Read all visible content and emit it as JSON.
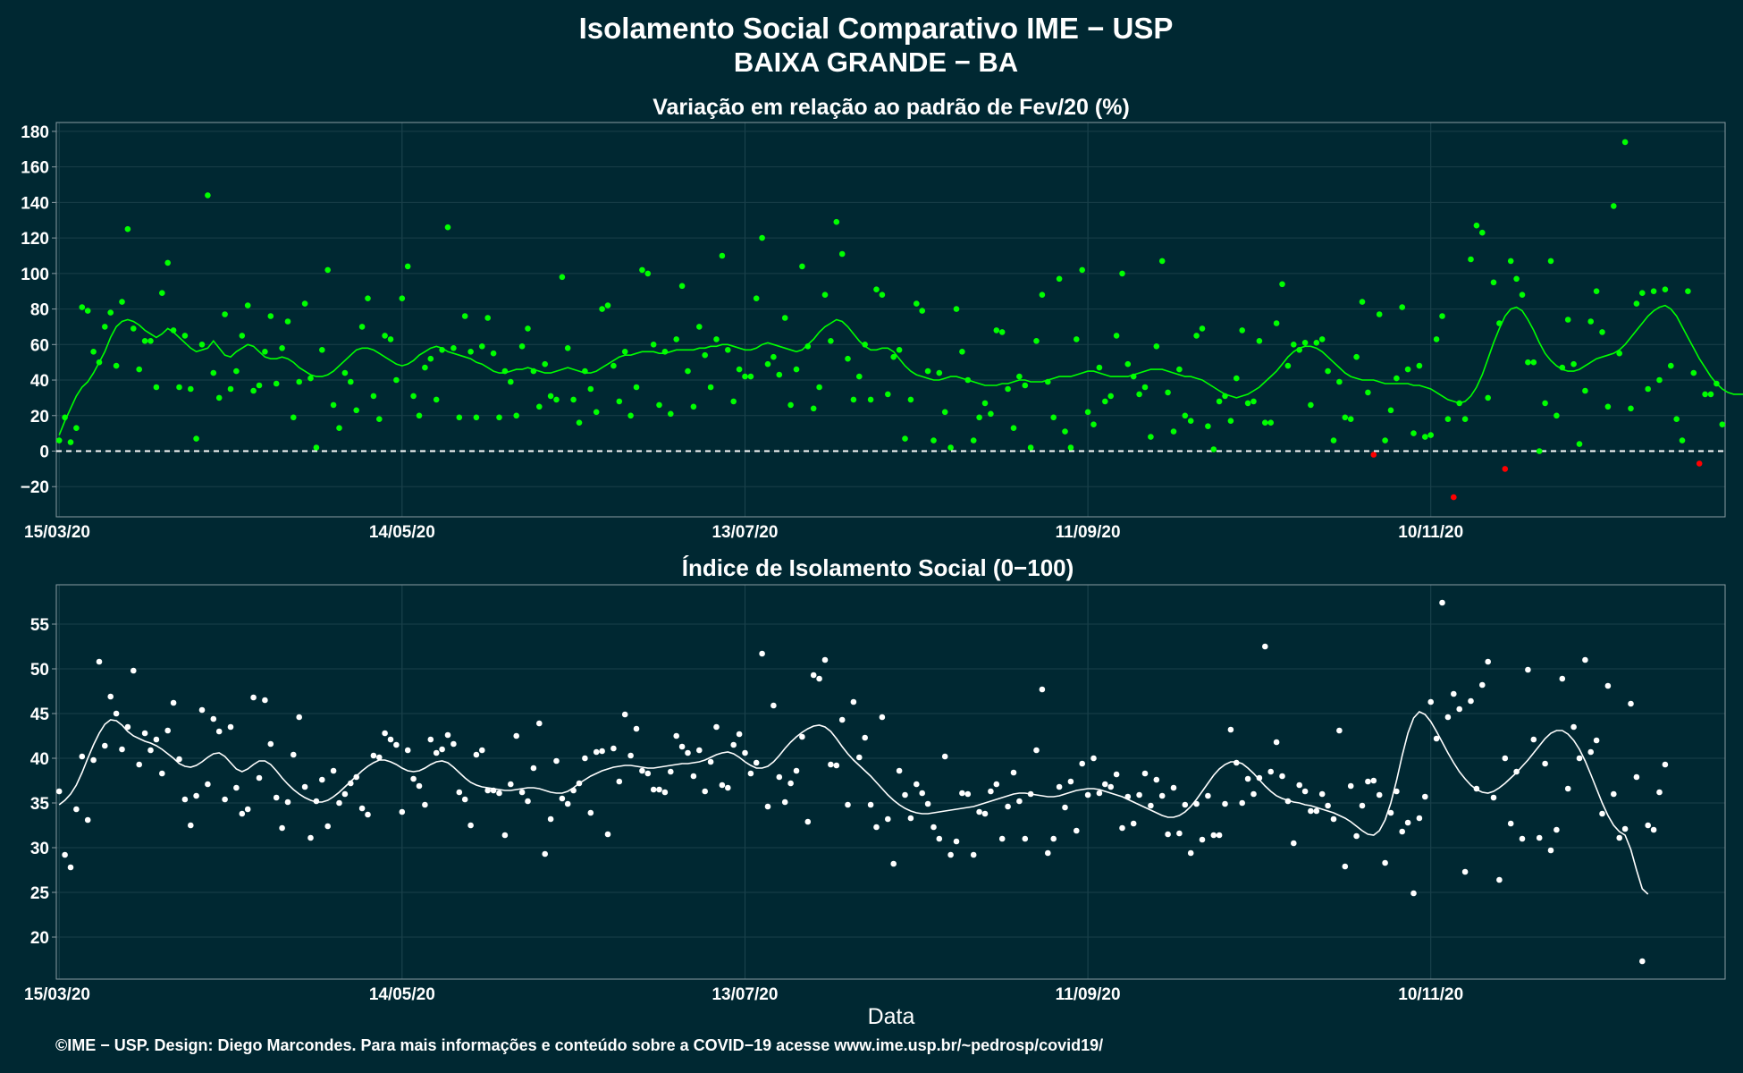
{
  "header": {
    "title": "Isolamento Social Comparativo IME − USP",
    "subtitle": "BAIXA GRANDE − BA"
  },
  "footer": {
    "credit": "©IME − USP. Design: Diego Marcondes. Para mais informações e conteúdo sobre a COVID−19 acesse www.ime.usp.br/~pedrosp/covid19/"
  },
  "colors": {
    "background": "#002832",
    "points_top": "#00ff00",
    "points_negative": "#ff0000",
    "line_top": "#00ff00",
    "points_bottom": "#ffffff",
    "line_bottom": "#ffffff",
    "panel_border": "#8a9ba3"
  },
  "chart_data": [
    {
      "type": "scatter",
      "title": "Variação em relação ao padrão de Fev/20 (%)",
      "xlabel": "",
      "ylabel": "",
      "x_start": "15/03/20",
      "x_end": "31/12/20",
      "xticks": [
        "15/03/20",
        "14/05/20",
        "13/07/20",
        "11/09/20",
        "10/11/20"
      ],
      "yticks": [
        -20,
        0,
        20,
        40,
        60,
        80,
        100,
        120,
        140,
        160,
        180
      ],
      "ylim": [
        -37,
        185
      ],
      "reference_line": 0,
      "grid": true,
      "values": [
        6,
        19,
        5,
        13,
        81,
        79,
        56,
        50,
        70,
        78,
        48,
        84,
        125,
        69,
        46,
        62,
        62,
        36,
        89,
        106,
        68,
        36,
        65,
        35,
        7,
        60,
        144,
        44,
        30,
        77,
        35,
        45,
        65,
        82,
        34,
        37,
        56,
        76,
        38,
        58,
        73,
        19,
        39,
        83,
        41,
        2,
        57,
        102,
        26,
        13,
        44,
        39,
        23,
        70,
        86,
        31,
        18,
        65,
        63,
        40,
        86,
        104,
        31,
        20,
        47,
        52,
        29,
        57,
        126,
        58,
        19,
        76,
        56,
        19,
        59,
        75,
        55,
        19,
        45,
        39,
        20,
        59,
        69,
        45,
        25,
        49,
        31,
        29,
        98,
        58,
        29,
        16,
        45,
        35,
        22,
        80,
        82,
        48,
        28,
        56,
        20,
        36,
        102,
        100,
        60,
        26,
        56,
        21,
        63,
        93,
        45,
        25,
        70,
        54,
        36,
        63,
        110,
        57,
        28,
        46,
        42,
        42,
        86,
        120,
        49,
        53,
        43,
        75,
        26,
        46,
        104,
        59,
        24,
        36,
        88,
        62,
        129,
        111,
        52,
        29,
        42,
        60,
        29,
        91,
        88,
        32,
        53,
        57,
        7,
        29,
        83,
        79,
        45,
        6,
        44,
        22,
        2,
        80,
        56,
        40,
        6,
        19,
        27,
        21,
        68,
        67,
        35,
        13,
        42,
        37,
        2,
        62,
        88,
        39,
        19,
        97,
        11,
        2,
        63,
        102,
        22,
        15,
        47,
        28,
        31,
        65,
        100,
        49,
        42,
        32,
        36,
        8,
        59,
        107,
        33,
        11,
        46,
        20,
        17,
        65,
        69,
        14,
        1,
        28,
        31,
        17,
        41,
        68,
        27,
        28,
        62,
        16,
        16,
        72,
        94,
        48,
        60,
        57,
        61,
        26,
        61,
        63,
        45,
        6,
        39,
        19,
        18,
        53,
        84,
        33,
        -2,
        77,
        6,
        23,
        41,
        81,
        46,
        10,
        48,
        8,
        9,
        63,
        76,
        18,
        -26,
        27,
        18,
        108,
        127,
        123,
        30,
        95,
        72,
        -10,
        107,
        97,
        88,
        50,
        50,
        0,
        27,
        107,
        20,
        47,
        74,
        49,
        4,
        34,
        73,
        90,
        67,
        25,
        138,
        55,
        174,
        24,
        83,
        89,
        35,
        90,
        40,
        91,
        48,
        18,
        6,
        90,
        44,
        -7,
        32,
        32,
        38,
        15
      ],
      "moving_average": [
        9,
        17,
        24,
        31,
        36,
        39,
        44,
        50,
        56,
        64,
        70,
        73,
        74,
        73,
        71,
        68,
        66,
        64,
        66,
        69,
        67,
        64,
        61,
        58,
        56,
        57,
        58,
        62,
        58,
        54,
        53,
        56,
        58,
        60,
        59,
        56,
        53,
        52,
        52,
        53,
        52,
        50,
        47,
        45,
        43,
        42,
        42,
        43,
        45,
        48,
        51,
        54,
        57,
        58,
        58,
        57,
        55,
        53,
        51,
        49,
        48,
        49,
        51,
        54,
        56,
        58,
        59,
        58,
        56,
        55,
        54,
        53,
        52,
        50,
        49,
        47,
        45,
        44,
        44,
        45,
        46,
        46,
        47,
        46,
        45,
        44,
        44,
        45,
        46,
        47,
        46,
        45,
        44,
        44,
        45,
        47,
        49,
        51,
        53,
        54,
        54,
        55,
        56,
        56,
        56,
        55,
        55,
        56,
        57,
        57,
        57,
        57,
        58,
        58,
        59,
        59,
        60,
        60,
        59,
        58,
        57,
        57,
        58,
        60,
        61,
        60,
        59,
        58,
        57,
        56,
        57,
        60,
        63,
        67,
        70,
        72,
        74,
        73,
        70,
        66,
        62,
        59,
        57,
        57,
        58,
        58,
        56,
        52,
        48,
        45,
        43,
        42,
        41,
        40,
        40,
        41,
        42,
        42,
        41,
        40,
        39,
        38,
        37,
        37,
        37,
        38,
        38,
        39,
        40,
        40,
        39,
        39,
        39,
        40,
        41,
        42,
        42,
        42,
        43,
        44,
        45,
        45,
        44,
        43,
        42,
        42,
        42,
        42,
        43,
        44,
        45,
        46,
        46,
        46,
        45,
        44,
        43,
        42,
        42,
        41,
        40,
        38,
        36,
        34,
        32,
        31,
        30,
        31,
        32,
        34,
        36,
        39,
        42,
        45,
        49,
        53,
        56,
        58,
        59,
        59,
        58,
        56,
        53,
        50,
        47,
        44,
        42,
        41,
        40,
        40,
        40,
        39,
        38,
        38,
        38,
        38,
        38,
        37,
        37,
        36,
        35,
        33,
        31,
        29,
        28,
        27,
        28,
        31,
        36,
        43,
        52,
        61,
        69,
        76,
        80,
        81,
        79,
        74,
        68,
        61,
        55,
        51,
        48,
        46,
        45,
        45,
        46,
        48,
        50,
        52,
        53,
        54,
        55,
        57,
        60,
        64,
        68,
        72,
        76,
        79,
        81,
        82,
        80,
        76,
        70,
        64,
        58,
        52,
        47,
        42,
        38,
        35,
        33,
        32,
        32,
        32,
        33,
        34
      ]
    },
    {
      "type": "scatter",
      "title": "Índice de Isolamento Social (0−100)",
      "xlabel": "Data",
      "ylabel": "",
      "x_start": "15/03/20",
      "x_end": "31/12/20",
      "xticks": [
        "15/03/20",
        "14/05/20",
        "13/07/20",
        "11/09/20",
        "10/11/20"
      ],
      "yticks": [
        20,
        25,
        30,
        35,
        40,
        45,
        50,
        55
      ],
      "ylim": [
        15.3,
        59.4
      ],
      "grid": true,
      "values": [
        36.3,
        29.2,
        27.8,
        34.3,
        40.2,
        33.1,
        39.8,
        50.8,
        41.4,
        46.9,
        45.0,
        41.0,
        43.5,
        49.8,
        39.3,
        42.8,
        40.9,
        42.1,
        38.3,
        43.1,
        46.2,
        39.9,
        35.4,
        32.5,
        35.8,
        45.4,
        37.1,
        44.4,
        43.0,
        35.4,
        43.5,
        36.7,
        33.8,
        34.3,
        46.8,
        37.8,
        46.5,
        41.6,
        35.6,
        32.2,
        35.1,
        40.4,
        44.6,
        36.8,
        31.1,
        35.2,
        37.6,
        32.4,
        38.6,
        35.0,
        36.0,
        37.2,
        37.9,
        34.4,
        33.7,
        40.3,
        40.1,
        42.8,
        42.1,
        41.5,
        34.0,
        40.9,
        37.7,
        36.9,
        34.8,
        42.1,
        40.6,
        41.0,
        42.6,
        41.6,
        36.2,
        35.4,
        32.5,
        40.4,
        40.9,
        36.4,
        36.4,
        36.1,
        31.4,
        37.1,
        42.5,
        36.2,
        35.2,
        38.9,
        43.9,
        29.3,
        33.2,
        39.7,
        35.5,
        34.9,
        36.4,
        37.2,
        40.0,
        33.9,
        40.7,
        40.8,
        31.5,
        41.1,
        37.4,
        44.9,
        40.3,
        43.3,
        38.6,
        38.3,
        36.5,
        36.5,
        36.2,
        38.5,
        42.5,
        41.3,
        40.6,
        38.0,
        40.9,
        36.3,
        39.6,
        43.5,
        37.0,
        36.7,
        41.5,
        42.7,
        40.6,
        38.3,
        39.5,
        51.7,
        34.6,
        45.9,
        37.9,
        35.1,
        37.2,
        38.6,
        42.4,
        32.9,
        49.3,
        48.9,
        51.0,
        39.3,
        39.2,
        44.3,
        34.8,
        46.3,
        40.1,
        42.3,
        34.8,
        32.3,
        44.6,
        33.2,
        28.2,
        38.6,
        35.9,
        33.3,
        37.1,
        36.1,
        34.9,
        32.3,
        31.0,
        40.2,
        29.2,
        30.7,
        36.1,
        36.0,
        29.2,
        34.0,
        33.8,
        36.3,
        37.1,
        31.0,
        34.6,
        38.4,
        35.2,
        31.0,
        36.0,
        40.9,
        47.7,
        29.4,
        31.0,
        36.8,
        34.5,
        37.4,
        31.9,
        39.4,
        35.9,
        40.0,
        36.1,
        37.1,
        36.8,
        38.2,
        32.2,
        35.7,
        32.7,
        35.9,
        38.3,
        34.7,
        37.6,
        35.8,
        31.5,
        36.7,
        31.6,
        34.8,
        29.4,
        34.9,
        30.9,
        35.8,
        31.4,
        31.4,
        34.9,
        43.2,
        39.5,
        35.0,
        37.7,
        36.0,
        37.8,
        52.5,
        38.5,
        41.8,
        38.0,
        35.2,
        30.5,
        37.0,
        36.3,
        34.1,
        34.1,
        36.0,
        34.7,
        33.2,
        43.1,
        27.9,
        36.9,
        31.3,
        34.7,
        37.4,
        37.5,
        35.9,
        28.3,
        33.9,
        36.3,
        31.8,
        32.8,
        24.9,
        33.3,
        35.7,
        46.3,
        42.2,
        57.4,
        44.6,
        47.2,
        45.5,
        27.3,
        46.4,
        36.6,
        48.2,
        50.8,
        35.6,
        26.4,
        40.0,
        32.7,
        38.5,
        31.0,
        49.9,
        42.1,
        31.1,
        39.4,
        29.7,
        32.0,
        48.9,
        36.6,
        43.5,
        40.0,
        51.0,
        40.7,
        42.0,
        33.8,
        48.1,
        36.0,
        31.1,
        32.1,
        46.1,
        37.9,
        17.3,
        32.5,
        32.0,
        36.2,
        39.3
      ],
      "moving_average": [
        34.8,
        35.3,
        36.0,
        37.0,
        38.4,
        40.0,
        41.5,
        42.8,
        43.8,
        44.3,
        44.2,
        43.7,
        43.0,
        42.5,
        42.2,
        41.9,
        41.7,
        41.4,
        41.0,
        40.5,
        40.0,
        39.4,
        39.1,
        39.0,
        39.2,
        39.6,
        40.1,
        40.5,
        40.6,
        40.2,
        39.5,
        38.8,
        38.5,
        38.8,
        39.3,
        39.7,
        39.7,
        39.3,
        38.6,
        37.8,
        37.1,
        36.5,
        36.0,
        35.6,
        35.3,
        35.1,
        35.1,
        35.3,
        35.7,
        36.2,
        36.8,
        37.4,
        38.0,
        38.6,
        39.1,
        39.5,
        39.8,
        39.8,
        39.6,
        39.3,
        38.9,
        38.6,
        38.5,
        38.6,
        38.9,
        39.3,
        39.6,
        39.7,
        39.5,
        39.0,
        38.4,
        37.8,
        37.3,
        37.0,
        36.8,
        36.7,
        36.6,
        36.5,
        36.4,
        36.4,
        36.5,
        36.6,
        36.7,
        36.7,
        36.6,
        36.4,
        36.2,
        36.1,
        36.1,
        36.3,
        36.7,
        37.2,
        37.6,
        38.0,
        38.3,
        38.6,
        38.8,
        39.0,
        39.1,
        39.2,
        39.2,
        39.1,
        39.0,
        38.9,
        38.9,
        39.0,
        39.1,
        39.2,
        39.3,
        39.4,
        39.4,
        39.5,
        39.6,
        39.8,
        40.1,
        40.4,
        40.6,
        40.7,
        40.5,
        40.1,
        39.6,
        39.2,
        38.9,
        38.9,
        39.1,
        39.6,
        40.3,
        41.1,
        41.8,
        42.4,
        42.9,
        43.3,
        43.6,
        43.7,
        43.5,
        43.0,
        42.2,
        41.3,
        40.5,
        39.8,
        39.2,
        38.6,
        38.0,
        37.3,
        36.6,
        35.9,
        35.3,
        34.8,
        34.4,
        34.1,
        33.9,
        33.8,
        33.8,
        33.9,
        34.0,
        34.1,
        34.2,
        34.3,
        34.4,
        34.5,
        34.6,
        34.8,
        35.0,
        35.2,
        35.4,
        35.6,
        35.8,
        36.0,
        36.1,
        36.1,
        36.0,
        35.9,
        35.8,
        35.7,
        35.7,
        35.8,
        36.0,
        36.2,
        36.4,
        36.5,
        36.6,
        36.6,
        36.5,
        36.3,
        36.1,
        35.9,
        35.7,
        35.4,
        35.1,
        34.8,
        34.5,
        34.2,
        33.9,
        33.6,
        33.4,
        33.4,
        33.6,
        34.0,
        34.6,
        35.4,
        36.3,
        37.2,
        38.1,
        38.8,
        39.3,
        39.6,
        39.6,
        39.4,
        38.9,
        38.3,
        37.6,
        36.9,
        36.3,
        35.8,
        35.5,
        35.3,
        35.1,
        35.0,
        34.8,
        34.7,
        34.5,
        34.3,
        34.1,
        33.9,
        33.6,
        33.3,
        32.9,
        32.4,
        31.9,
        31.5,
        31.4,
        31.9,
        33.1,
        35.0,
        37.5,
        40.3,
        42.8,
        44.5,
        45.2,
        44.9,
        44.1,
        43.0,
        41.8,
        40.6,
        39.5,
        38.5,
        37.7,
        37.0,
        36.5,
        36.2,
        36.1,
        36.3,
        36.7,
        37.2,
        37.8,
        38.4,
        39.1,
        39.8,
        40.6,
        41.4,
        42.2,
        42.8,
        43.1,
        43.1,
        42.7,
        42.0,
        41.0,
        39.7,
        38.2,
        36.6,
        35.0,
        33.6,
        32.5,
        31.8,
        31.4,
        29.8,
        27.5,
        25.4,
        24.8
      ]
    }
  ]
}
